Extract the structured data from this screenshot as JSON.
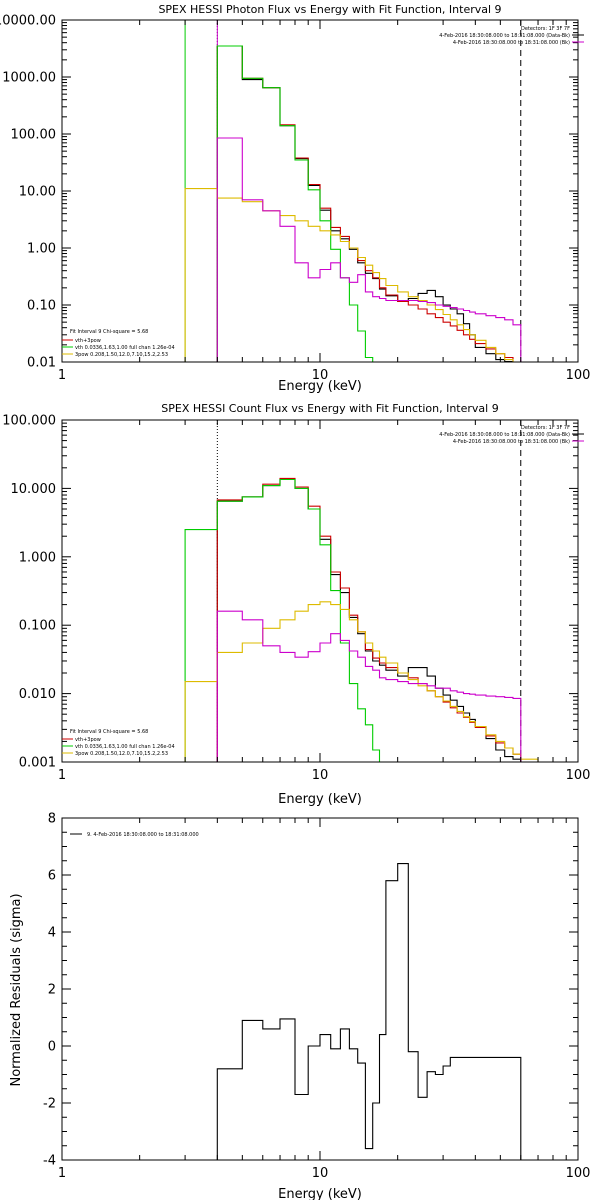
{
  "chart_data": [
    {
      "type": "step-line",
      "title": "SPEX HESSI Photon Flux vs Energy with Fit Function, Interval 9",
      "xlabel": "Energy (keV)",
      "ylabel": "",
      "xscale": "log",
      "yscale": "log",
      "xlim": [
        1,
        100
      ],
      "ylim": [
        0.01,
        10000
      ],
      "xticks": [
        {
          "v": 1,
          "label": "1"
        },
        {
          "v": 10,
          "label": "10"
        },
        {
          "v": 100,
          "label": "100"
        }
      ],
      "yticks": [
        {
          "v": 0.01,
          "label": "0.01"
        },
        {
          "v": 0.1,
          "label": "0.10"
        },
        {
          "v": 1,
          "label": "1.00"
        },
        {
          "v": 10,
          "label": "10.00"
        },
        {
          "v": 100,
          "label": "100.00"
        },
        {
          "v": 1000,
          "label": "1000.00"
        },
        {
          "v": 10000,
          "label": "10000.00"
        }
      ],
      "vlines": [
        {
          "x": 3.0,
          "style": "solid",
          "color": "#00cc00"
        },
        {
          "x": 4.0,
          "style": "dotted",
          "color": "#000000"
        },
        {
          "x": 4.0,
          "style": "solid",
          "color": "#cc00cc"
        },
        {
          "x": 60,
          "style": "dashed",
          "color": "#000000"
        }
      ],
      "header_right": [
        "Detectors: 1F 3F 7F",
        "4-Feb-2016 18:30:08.000 to 18:31:08.000 (Data-Bk)",
        "4-Feb-2016 18:30:08.000 to 18:31:08.000 (Bk)"
      ],
      "header_colors": [
        "#000000",
        "#000000",
        "#cc00cc"
      ],
      "legend_title": "Fit Interval 9   Chi-square = 5.68",
      "legend": [
        {
          "label": "vth+3pow",
          "color": "#cc0000"
        },
        {
          "label": "vth 0.0336,1.63,1.00  full chan 1.26e-04",
          "color": "#00cc00"
        },
        {
          "label": "3pow 0.208,1.50,12.0,7.10,15.2,2.53",
          "color": "#ddbb00"
        }
      ],
      "series": [
        {
          "name": "Data-Bk",
          "color": "#000000",
          "edges": [
            4,
            5,
            6,
            7,
            8,
            9,
            10,
            11,
            12,
            13,
            14,
            15,
            16,
            17,
            18,
            20,
            22,
            24,
            26,
            28,
            30,
            32,
            34,
            36,
            38,
            40,
            44,
            48,
            52,
            56,
            60
          ],
          "values": [
            3500,
            900,
            650,
            140,
            37,
            12.5,
            4.6,
            2.0,
            1.45,
            0.95,
            0.55,
            0.36,
            0.29,
            0.19,
            0.145,
            0.115,
            0.13,
            0.16,
            0.18,
            0.14,
            0.1,
            0.085,
            0.07,
            0.047,
            0.03,
            0.018,
            0.014,
            0.011,
            0.0102,
            0.0098
          ]
        },
        {
          "name": "vth+3pow",
          "color": "#cc0000",
          "edges": [
            4,
            5,
            6,
            7,
            8,
            9,
            10,
            11,
            12,
            13,
            14,
            15,
            16,
            17,
            18,
            20,
            22,
            24,
            26,
            28,
            30,
            32,
            34,
            36,
            38,
            40,
            44,
            48,
            52,
            56,
            60
          ],
          "values": [
            3500,
            950,
            650,
            145,
            38,
            13,
            5.0,
            2.3,
            1.6,
            1.0,
            0.6,
            0.4,
            0.3,
            0.2,
            0.15,
            0.115,
            0.1,
            0.085,
            0.07,
            0.06,
            0.05,
            0.043,
            0.036,
            0.03,
            0.025,
            0.021,
            0.017,
            0.014,
            0.012,
            0.01
          ]
        },
        {
          "name": "vth",
          "color": "#00cc00",
          "edges": [
            3,
            4,
            5,
            6,
            7,
            8,
            9,
            10,
            11,
            12,
            13,
            14,
            15,
            16
          ],
          "values": [
            0.01,
            3500,
            950,
            650,
            140,
            35,
            10.5,
            3.0,
            0.95,
            0.3,
            0.1,
            0.035,
            0.012,
            0.01
          ]
        },
        {
          "name": "3pow",
          "color": "#ddbb00",
          "edges": [
            3,
            4,
            5,
            6,
            7,
            8,
            9,
            10,
            11,
            12,
            13,
            14,
            15,
            16,
            17,
            18,
            20,
            22,
            24,
            26,
            28,
            30,
            32,
            34,
            36,
            38,
            40,
            44,
            48,
            52,
            56,
            60
          ],
          "values": [
            11,
            7.5,
            6.5,
            4.5,
            3.7,
            3.0,
            2.4,
            2.0,
            1.7,
            1.3,
            1.0,
            0.68,
            0.5,
            0.37,
            0.29,
            0.22,
            0.17,
            0.14,
            0.12,
            0.1,
            0.083,
            0.068,
            0.055,
            0.045,
            0.037,
            0.03,
            0.024,
            0.018,
            0.014,
            0.011,
            0.0095
          ]
        },
        {
          "name": "Bk",
          "color": "#cc00cc",
          "edges": [
            4,
            5,
            6,
            7,
            8,
            9,
            10,
            11,
            12,
            13,
            14,
            15,
            16,
            17,
            18,
            20,
            22,
            24,
            26,
            28,
            30,
            32,
            34,
            36,
            38,
            40,
            44,
            48,
            52,
            56,
            60
          ],
          "values": [
            85,
            7.0,
            4.5,
            2.4,
            0.55,
            0.3,
            0.42,
            0.55,
            0.3,
            0.25,
            0.34,
            0.17,
            0.14,
            0.13,
            0.12,
            0.12,
            0.12,
            0.115,
            0.11,
            0.1,
            0.095,
            0.09,
            0.085,
            0.08,
            0.075,
            0.07,
            0.065,
            0.06,
            0.055,
            0.045
          ]
        }
      ]
    },
    {
      "type": "step-line",
      "title": "SPEX HESSI Count Flux vs Energy with Fit Function, Interval 9",
      "xlabel": "Energy (keV)",
      "ylabel": "",
      "xscale": "log",
      "yscale": "log",
      "xlim": [
        1,
        100
      ],
      "ylim": [
        0.001,
        100
      ],
      "xticks": [
        {
          "v": 1,
          "label": "1"
        },
        {
          "v": 10,
          "label": "10"
        },
        {
          "v": 100,
          "label": "100"
        }
      ],
      "yticks": [
        {
          "v": 0.001,
          "label": "0.001"
        },
        {
          "v": 0.01,
          "label": "0.010"
        },
        {
          "v": 0.1,
          "label": "0.100"
        },
        {
          "v": 1,
          "label": "1.000"
        },
        {
          "v": 10,
          "label": "10.000"
        },
        {
          "v": 100,
          "label": "100.000"
        }
      ],
      "vlines": [
        {
          "x": 4.0,
          "style": "dotted",
          "color": "#000000"
        },
        {
          "x": 60,
          "style": "dashed",
          "color": "#000000"
        }
      ],
      "header_right": [
        "Detectors: 1F 3F 7F",
        "4-Feb-2016 18:30:08.000 to 18:31:08.000 (Data-Bk)",
        "4-Feb-2016 18:30:08.000 to 18:31:08.000 (Bk)"
      ],
      "header_colors": [
        "#000000",
        "#000000",
        "#cc00cc"
      ],
      "legend_title": "Fit Interval 9   Chi-square = 5.68",
      "legend": [
        {
          "label": "vth+3pow",
          "color": "#cc0000"
        },
        {
          "label": "vth 0.0336,1.63,1.00  full chan 1.26e-04",
          "color": "#00cc00"
        },
        {
          "label": "3pow 0.208,1.50,12.0,7.10,15.2,2.53",
          "color": "#ddbb00"
        }
      ],
      "series": [
        {
          "name": "Data-Bk",
          "color": "#000000",
          "edges": [
            4,
            5,
            6,
            7,
            8,
            9,
            10,
            11,
            12,
            13,
            14,
            15,
            16,
            17,
            18,
            20,
            22,
            24,
            26,
            28,
            30,
            32,
            34,
            36,
            38,
            40,
            44,
            48,
            52,
            56,
            60
          ],
          "values": [
            6.5,
            7.5,
            11,
            13.5,
            10,
            5.0,
            1.8,
            0.55,
            0.3,
            0.13,
            0.075,
            0.042,
            0.03,
            0.026,
            0.022,
            0.018,
            0.024,
            0.024,
            0.018,
            0.012,
            0.0095,
            0.008,
            0.0065,
            0.0052,
            0.0042,
            0.0033,
            0.0022,
            0.0015,
            0.0012,
            0.0011
          ]
        },
        {
          "name": "vth+3pow",
          "color": "#cc0000",
          "edges": [
            4,
            5,
            6,
            7,
            8,
            9,
            10,
            11,
            12,
            13,
            14,
            15,
            16,
            17,
            18,
            20,
            22,
            24,
            26,
            28,
            30,
            32,
            34,
            36,
            38,
            40,
            44,
            48,
            52,
            56,
            60
          ],
          "values": [
            6.8,
            7.5,
            11.5,
            14,
            10.5,
            5.5,
            2.0,
            0.6,
            0.35,
            0.14,
            0.08,
            0.044,
            0.033,
            0.028,
            0.024,
            0.02,
            0.017,
            0.014,
            0.011,
            0.009,
            0.0075,
            0.0062,
            0.0052,
            0.0045,
            0.0038,
            0.0032,
            0.0024,
            0.0019,
            0.0016,
            0.0013
          ]
        },
        {
          "name": "vth",
          "color": "#00cc00",
          "edges": [
            3,
            4,
            5,
            6,
            7,
            8,
            9,
            10,
            11,
            12,
            13,
            14,
            15,
            16,
            17
          ],
          "values": [
            2.5,
            6.5,
            7.5,
            11,
            13.5,
            10,
            5.0,
            1.5,
            0.32,
            0.055,
            0.014,
            0.006,
            0.0035,
            0.0015,
            0.0005
          ]
        },
        {
          "name": "3pow",
          "color": "#ddbb00",
          "edges": [
            3,
            4,
            5,
            6,
            7,
            8,
            9,
            10,
            11,
            12,
            13,
            14,
            15,
            16,
            17,
            18,
            20,
            22,
            24,
            26,
            28,
            30,
            32,
            34,
            36,
            38,
            40,
            44,
            48,
            52,
            56,
            60,
            70,
            80
          ],
          "values": [
            0.015,
            0.04,
            0.055,
            0.09,
            0.12,
            0.16,
            0.2,
            0.22,
            0.2,
            0.17,
            0.12,
            0.08,
            0.055,
            0.042,
            0.034,
            0.028,
            0.02,
            0.016,
            0.013,
            0.011,
            0.009,
            0.0078,
            0.0065,
            0.0055,
            0.0046,
            0.0039,
            0.0033,
            0.0025,
            0.002,
            0.0016,
            0.0013,
            0.0011,
            0.001
          ]
        },
        {
          "name": "Bk",
          "color": "#cc00cc",
          "edges": [
            4,
            5,
            6,
            7,
            8,
            9,
            10,
            11,
            12,
            13,
            14,
            15,
            16,
            17,
            18,
            20,
            22,
            24,
            26,
            28,
            30,
            32,
            34,
            36,
            38,
            40,
            44,
            48,
            52,
            56,
            60
          ],
          "values": [
            0.16,
            0.12,
            0.05,
            0.04,
            0.034,
            0.041,
            0.055,
            0.075,
            0.06,
            0.042,
            0.034,
            0.025,
            0.022,
            0.017,
            0.016,
            0.015,
            0.014,
            0.014,
            0.013,
            0.012,
            0.012,
            0.011,
            0.0105,
            0.01,
            0.0098,
            0.0095,
            0.0092,
            0.009,
            0.0088,
            0.0085
          ]
        }
      ]
    },
    {
      "type": "step-line",
      "title": "",
      "xlabel": "Energy (keV)",
      "ylabel": "Normalized Residuals (sigma)",
      "xscale": "log",
      "yscale": "linear",
      "xlim": [
        1,
        100
      ],
      "ylim": [
        -4,
        8
      ],
      "xticks": [
        {
          "v": 1,
          "label": "1"
        },
        {
          "v": 10,
          "label": "10"
        },
        {
          "v": 100,
          "label": "100"
        }
      ],
      "yticks": [
        {
          "v": -4,
          "label": "-4"
        },
        {
          "v": -2,
          "label": "-2"
        },
        {
          "v": 0,
          "label": "0"
        },
        {
          "v": 2,
          "label": "2"
        },
        {
          "v": 4,
          "label": "4"
        },
        {
          "v": 6,
          "label": "6"
        },
        {
          "v": 8,
          "label": "8"
        }
      ],
      "vlines": [],
      "legend": [
        {
          "label": "9.  4-Feb-2016 18:30:08.000 to 18:31:08.000",
          "color": "#000000"
        }
      ],
      "series": [
        {
          "name": "9",
          "color": "#000000",
          "edges": [
            4,
            5,
            6,
            7,
            8,
            9,
            10,
            11,
            12,
            13,
            14,
            15,
            16,
            17,
            18,
            20,
            22,
            24,
            26,
            28,
            30,
            32,
            34,
            36,
            38,
            40,
            44,
            48,
            52,
            56,
            60
          ],
          "values": [
            -0.8,
            0.9,
            0.6,
            0.95,
            -1.7,
            0.0,
            0.4,
            -0.1,
            0.6,
            -0.1,
            -0.6,
            -3.6,
            -2.0,
            0.4,
            5.8,
            6.4,
            -0.2,
            -1.8,
            -0.9,
            -1.0,
            -0.7,
            -0.4,
            -0.4,
            -0.4,
            -0.4,
            -0.4,
            -0.4,
            -0.4,
            -0.4,
            -0.4
          ]
        }
      ]
    }
  ]
}
